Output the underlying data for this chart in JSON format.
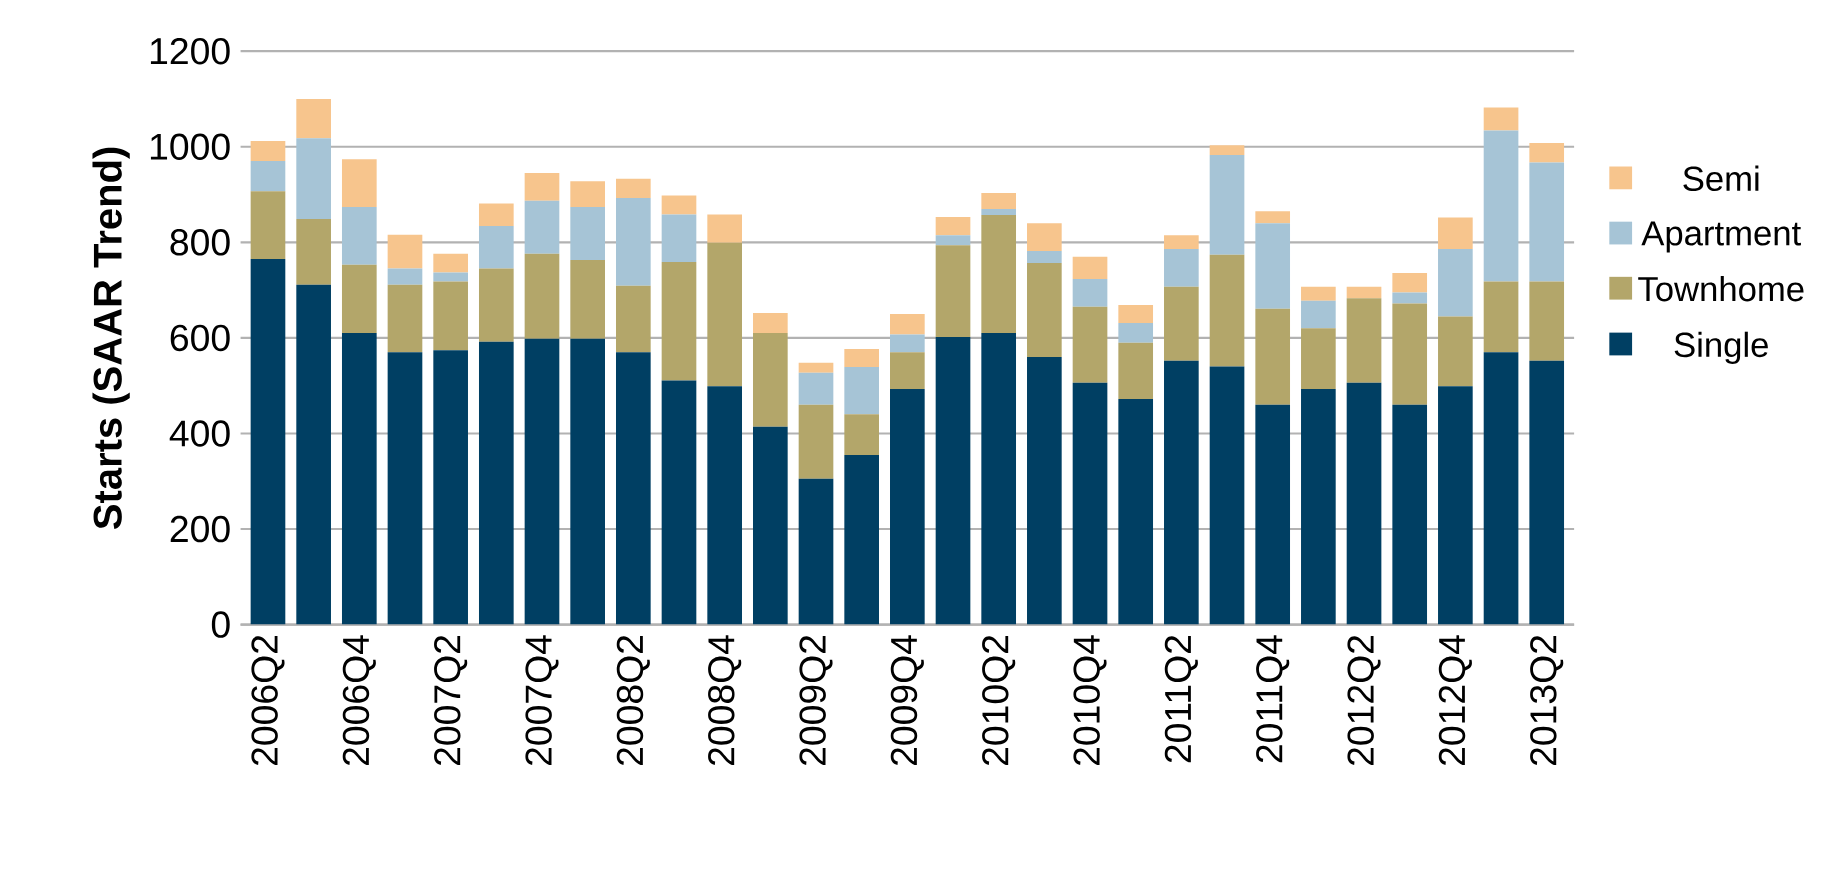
{
  "chart_data": {
    "type": "bar",
    "stacked": true,
    "ylabel": "Starts (SAAR Trend)",
    "categories": [
      "2006Q2",
      null,
      "2006Q4",
      null,
      "2007Q2",
      null,
      "2007Q4",
      null,
      "2008Q2",
      null,
      "2008Q4",
      null,
      "2009Q2",
      null,
      "2009Q4",
      null,
      "2010Q2",
      null,
      "2010Q4",
      null,
      "2011Q2",
      null,
      "2011Q4",
      null,
      "2012Q2",
      null,
      "2012Q4",
      null,
      "2013Q2"
    ],
    "series": [
      {
        "name": "Single",
        "color": "#003f63",
        "values": [
          765,
          711,
          610,
          570,
          574,
          592,
          598,
          598,
          570,
          511,
          499,
          414,
          305,
          355,
          493,
          602,
          610,
          560,
          506,
          472,
          552,
          540,
          460,
          493,
          506,
          460,
          499,
          570,
          552
        ]
      },
      {
        "name": "Townhome",
        "color": "#b3a66a",
        "values": [
          142,
          138,
          143,
          141,
          144,
          153,
          178,
          165,
          139,
          248,
          300,
          196,
          155,
          85,
          77,
          192,
          247,
          197,
          159,
          118,
          155,
          234,
          201,
          127,
          177,
          212,
          146,
          148,
          166
        ]
      },
      {
        "name": "Apartment",
        "color": "#a6c4d6",
        "values": [
          63,
          169,
          121,
          34,
          19,
          89,
          111,
          111,
          184,
          99,
          0,
          0,
          67,
          99,
          37,
          21,
          13,
          25,
          58,
          41,
          79,
          209,
          179,
          58,
          0,
          23,
          141,
          316,
          249
        ]
      },
      {
        "name": "Semi",
        "color": "#f7c58d",
        "values": [
          42,
          82,
          100,
          71,
          39,
          47,
          58,
          54,
          40,
          40,
          59,
          42,
          21,
          38,
          43,
          38,
          33,
          58,
          47,
          38,
          29,
          20,
          25,
          29,
          24,
          41,
          66,
          48,
          41
        ]
      }
    ],
    "ylim": [
      0,
      1200
    ],
    "yticks": [
      0,
      200,
      400,
      600,
      800,
      1000,
      1200
    ],
    "grid": "y",
    "legend": "right"
  }
}
